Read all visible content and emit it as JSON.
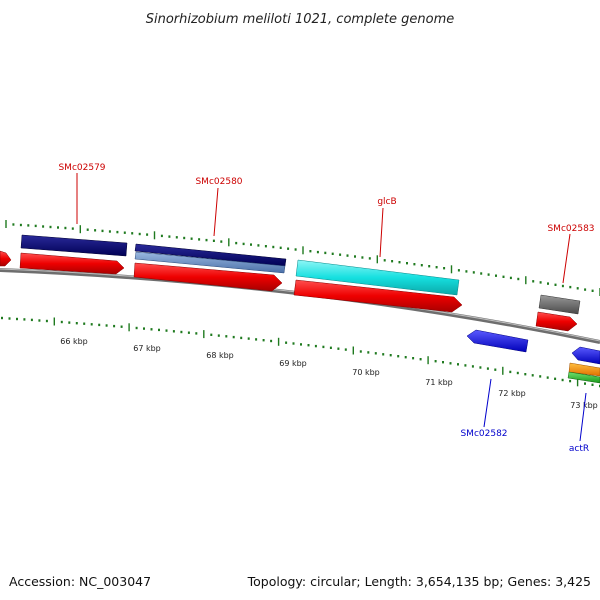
{
  "title": "Sinorhizobium meliloti 1021, complete genome",
  "footer": {
    "accession": "Accession: NC_003047",
    "summary": "Topology: circular; Length: 3,654,135 bp; Genes: 3,425"
  },
  "colors": {
    "forward_label": "#cc0000",
    "reverse_label": "#0000cc",
    "tick": "#1f7a1f",
    "backbone": "#8a8a8a"
  },
  "scale_labels": [
    "66 kbp",
    "67 kbp",
    "68 kbp",
    "69 kbp",
    "70 kbp",
    "71 kbp",
    "72 kbp",
    "73 kbp"
  ],
  "gene_labels": [
    {
      "text": "SMc02579",
      "strand": "forward"
    },
    {
      "text": "SMc02580",
      "strand": "forward"
    },
    {
      "text": "glcB",
      "strand": "forward"
    },
    {
      "text": "SMc02583",
      "strand": "forward"
    },
    {
      "text": "SMc02582",
      "strand": "reverse"
    },
    {
      "text": "actR",
      "strand": "reverse"
    }
  ]
}
